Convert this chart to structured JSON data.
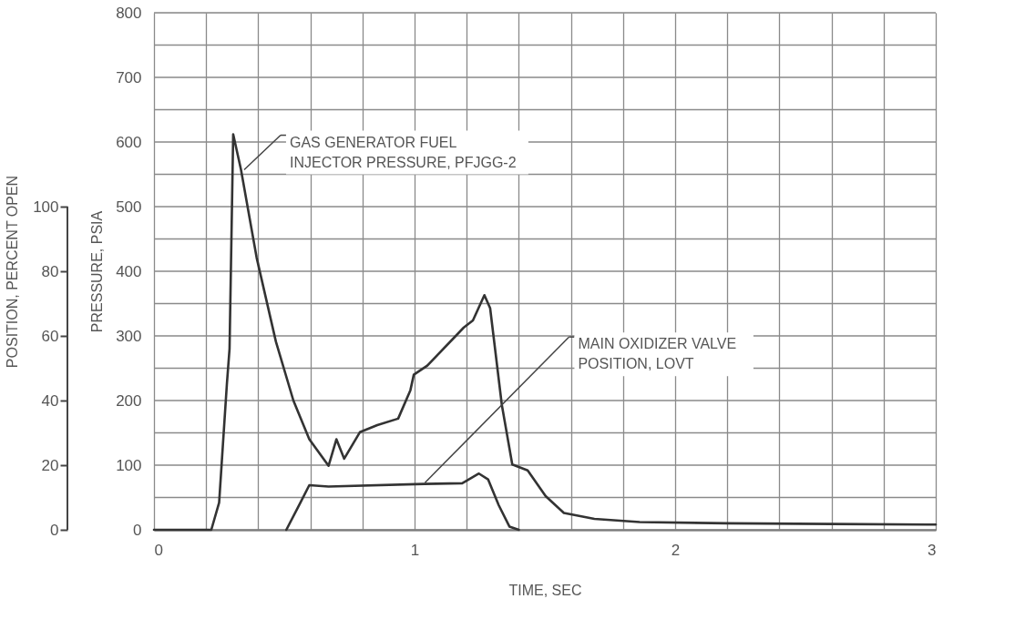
{
  "chart_data": {
    "type": "line",
    "xlabel": "TIME, SEC",
    "ylabel": "PRESSURE, PSIA",
    "y2label": "POSITION, PERCENT OPEN",
    "xlim": [
      0,
      3
    ],
    "ylim": [
      0,
      800
    ],
    "y2lim": [
      0,
      160
    ],
    "xticks": [
      0,
      {
        "value": 0.2,
        "label": null
      },
      {
        "value": 0.4,
        "label": null
      },
      {
        "value": 0.6,
        "label": null
      },
      {
        "value": 0.8,
        "label": null
      },
      1,
      {
        "value": 1.2,
        "label": null
      },
      {
        "value": 1.4,
        "label": null
      },
      {
        "value": 1.6,
        "label": null
      },
      {
        "value": 1.8,
        "label": null
      },
      2,
      {
        "value": 2.2,
        "label": null
      },
      {
        "value": 2.4,
        "label": null
      },
      {
        "value": 2.6,
        "label": null
      },
      {
        "value": 2.8,
        "label": null
      },
      3
    ],
    "yticks": [
      0,
      {
        "value": 50,
        "label": null
      },
      100,
      {
        "value": 150,
        "label": null
      },
      200,
      {
        "value": 250,
        "label": null
      },
      300,
      {
        "value": 350,
        "label": null
      },
      400,
      {
        "value": 450,
        "label": null
      },
      500,
      {
        "value": 550,
        "label": null
      },
      600,
      {
        "value": 650,
        "label": null
      },
      700,
      {
        "value": 750,
        "label": null
      },
      800
    ],
    "y2ticks": [
      0,
      20,
      40,
      60,
      80,
      100
    ],
    "grid": true,
    "marker": "none",
    "line_style": "solid",
    "series": [
      {
        "color": "#333333",
        "x": [
          0,
          0.22,
          0.25,
          0.28,
          0.29,
          0.304,
          0.334,
          0.394,
          0.468,
          0.535,
          0.596,
          0.67,
          0.7,
          0.73,
          0.79,
          0.857,
          0.937,
          0.984,
          0.997,
          1.049,
          1.189,
          1.224,
          1.268,
          1.29,
          1.335,
          1.375,
          1.434,
          1.503,
          1.573,
          1.69,
          1.864,
          2.2,
          2.6,
          3
        ],
        "values": [
          0,
          0,
          42,
          227,
          280,
          612,
          557,
          421,
          291,
          200,
          140,
          99,
          140,
          110,
          151,
          162,
          172,
          216,
          240,
          254,
          313,
          324,
          363,
          343,
          193,
          101,
          92,
          52,
          26,
          17,
          12,
          10,
          9,
          8
        ]
      },
      {
        "color": "#333333",
        "axis": "y2",
        "x": [
          0.508,
          0.562,
          0.596,
          0.67,
          1.037,
          1.183,
          1.247,
          1.282,
          1.323,
          1.364,
          1.4
        ],
        "values": [
          0,
          8.4,
          13.8,
          13.4,
          14.2,
          14.4,
          17.4,
          15.6,
          7.6,
          1,
          0
        ]
      }
    ],
    "annotations": [
      {
        "text": "GAS GENERATOR FUEL\nINJECTOR PRESSURE, PFJGG-2",
        "x": 0.346,
        "y": 557
      },
      {
        "text": "MAIN OXIDIZER VALVE\nPOSITION, LOVT",
        "x": 1.04,
        "y": 73
      }
    ]
  }
}
